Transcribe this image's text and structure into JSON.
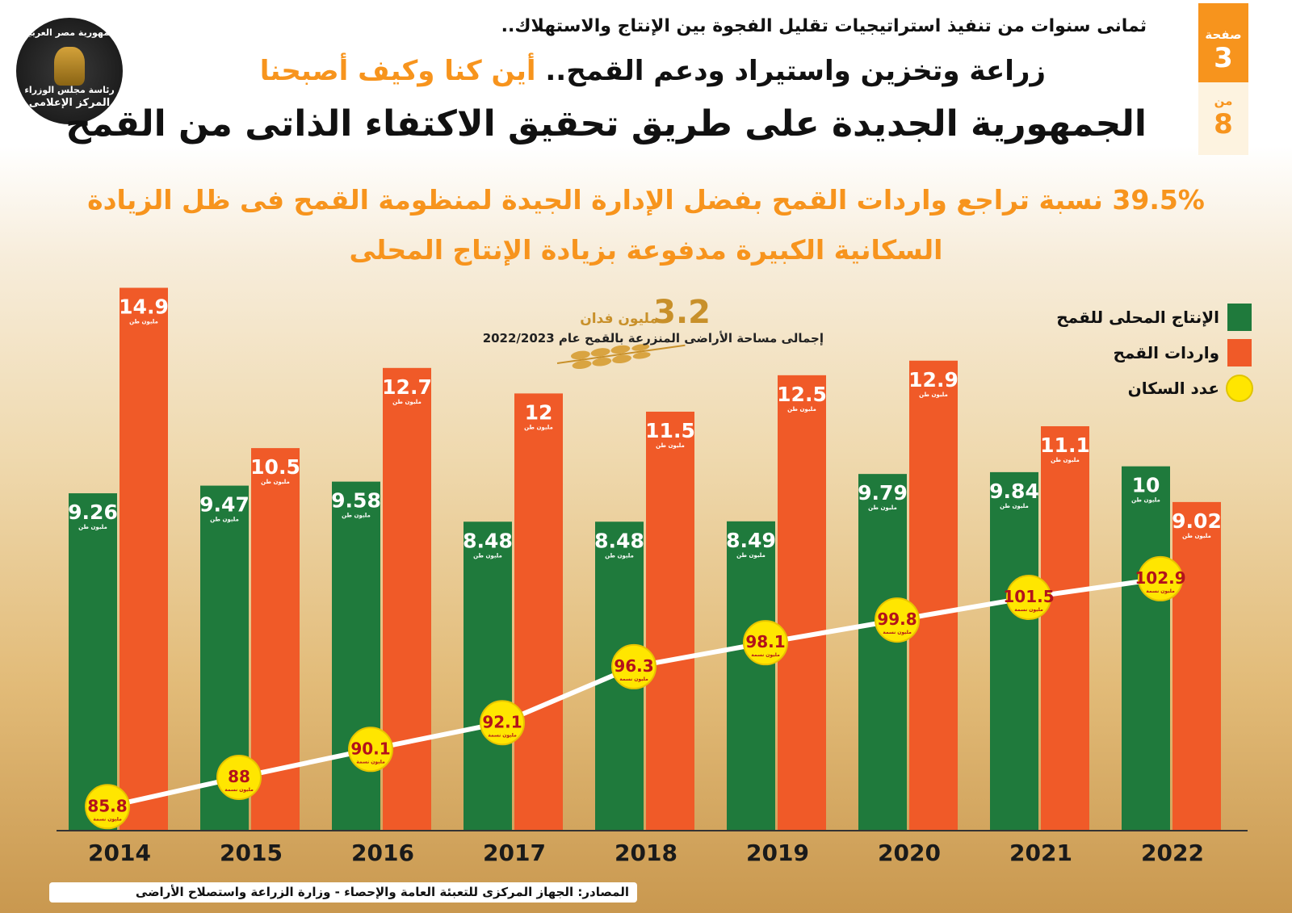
{
  "logo": {
    "line1": "جمهورية مصر العربية",
    "line2": "رئاسة مجلس الوزراء",
    "line3": "المركز الإعلامى"
  },
  "header": {
    "kicker": "ثمانى سنوات من تنفيذ استراتيجيات تقليل الفجوة بين الإنتاج والاستهلاك..",
    "headline_part1": "زراعة وتخزين واستيراد ودعم القمح..",
    "headline_part2": "أين كنا وكيف أصبحنا",
    "title": "الجمهورية الجديدة على طريق تحقيق الاكتفاء الذاتى من القمح"
  },
  "page_indicator": {
    "page_label": "صفحة",
    "page": "3",
    "of_label": "من",
    "total": "8"
  },
  "chart_data": {
    "type": "bar",
    "subtitle_lines": [
      "39.5% نسبة تراجع واردات القمح بفضل الإدارة الجيدة لمنظومة القمح فى ظل الزيادة",
      "السكانية الكبيرة مدفوعة بزيادة الإنتاج المحلى"
    ],
    "annotation": {
      "value": 3.2,
      "unit": "مليون فدان",
      "text": "إجمالى مساحة الأراضى المنزرعة بالقمح عام 2022/2023"
    },
    "categories": [
      "2014",
      "2015",
      "2016",
      "2017",
      "2018",
      "2019",
      "2020",
      "2021",
      "2022"
    ],
    "series": [
      {
        "name": "الإنتاج المحلى للقمح",
        "color": "#1f7a3c",
        "unit": "مليون طن",
        "values": [
          9.26,
          9.47,
          9.58,
          8.48,
          8.48,
          8.49,
          9.79,
          9.84,
          10
        ]
      },
      {
        "name": "واردات القمح",
        "color": "#f05a28",
        "unit": "مليون طن",
        "values": [
          14.9,
          10.5,
          12.7,
          12,
          11.5,
          12.5,
          12.9,
          11.1,
          9.02
        ]
      },
      {
        "name": "عدد السكان",
        "type": "line",
        "axis": "y2",
        "color": "#ffe600",
        "line_color": "#ffffff",
        "unit": "مليون نسمة",
        "values": [
          85.8,
          88,
          90.1,
          92.1,
          96.3,
          98.1,
          99.8,
          101.5,
          102.9
        ]
      }
    ],
    "ylim": [
      0,
      15
    ],
    "y2lim": [
      84,
      125
    ],
    "legend": "top-right",
    "source": "المصادر: الجهاز المركزى للتعبئة العامة والإحصاء - وزارة الزراعة واستصلاح الأراضى"
  }
}
